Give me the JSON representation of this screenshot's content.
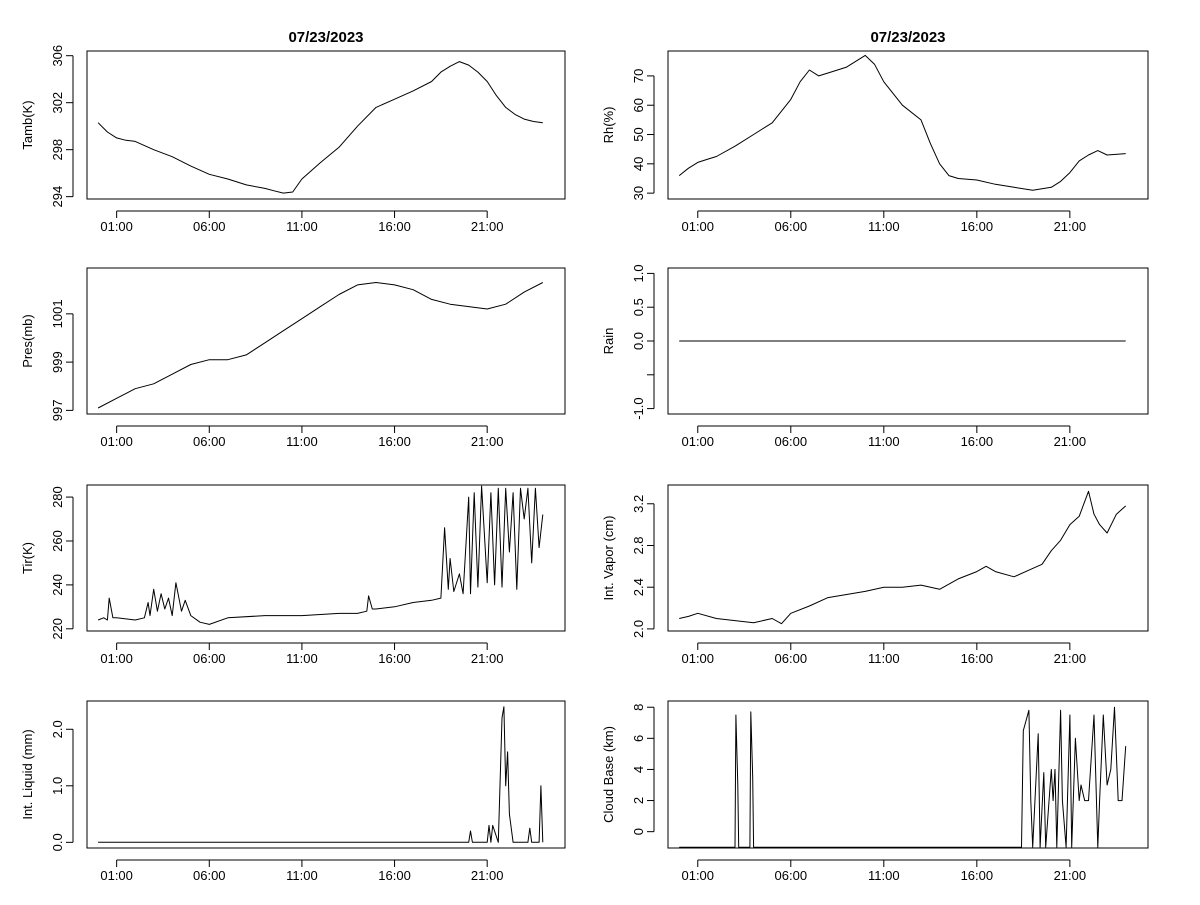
{
  "chart_data": [
    {
      "type": "line",
      "title": "07/23/2023",
      "ylabel": "Tamb(K)",
      "xlabel": "",
      "xlim": [
        -0.6,
        25.2
      ],
      "ylim": [
        293.8,
        306.4
      ],
      "xticks": [
        "01:00",
        "06:00",
        "11:00",
        "16:00",
        "21:00"
      ],
      "xtick_values": [
        1,
        6,
        11,
        16,
        21
      ],
      "yticks": [
        294,
        298,
        302,
        306
      ],
      "ytick_labels": [
        "294",
        "298",
        "302",
        "306"
      ],
      "x": [
        0,
        0.5,
        1,
        1.5,
        2,
        3,
        4,
        5,
        6,
        7,
        8,
        9,
        9.5,
        10,
        10.5,
        11,
        12,
        13,
        14,
        15,
        16,
        17,
        18,
        18.5,
        19,
        19.5,
        20,
        20.5,
        21,
        21.5,
        22,
        22.5,
        23,
        23.5,
        24
      ],
      "y": [
        300.3,
        299.5,
        299.0,
        298.8,
        298.7,
        298.0,
        297.4,
        296.6,
        295.9,
        295.5,
        295.0,
        294.7,
        294.5,
        294.3,
        294.4,
        295.5,
        296.9,
        298.2,
        300.0,
        301.6,
        302.3,
        303.0,
        303.8,
        304.6,
        305.1,
        305.5,
        305.2,
        304.6,
        303.8,
        302.6,
        301.6,
        301.0,
        300.6,
        300.4,
        300.3
      ]
    },
    {
      "type": "line",
      "title": "07/23/2023",
      "ylabel": "Rh(%)",
      "xlabel": "",
      "xlim": [
        -0.6,
        25.2
      ],
      "ylim": [
        28,
        78.5
      ],
      "xticks": [
        "01:00",
        "06:00",
        "11:00",
        "16:00",
        "21:00"
      ],
      "xtick_values": [
        1,
        6,
        11,
        16,
        21
      ],
      "yticks": [
        30,
        40,
        50,
        60,
        70
      ],
      "ytick_labels": [
        "30",
        "40",
        "50",
        "60",
        "70"
      ],
      "x": [
        0,
        0.5,
        1,
        1.5,
        2,
        3,
        4,
        5,
        6,
        6.5,
        7,
        7.5,
        8,
        9,
        10,
        10.5,
        11,
        12,
        13,
        13.5,
        14,
        14.5,
        15,
        16,
        17,
        18,
        19,
        20,
        20.5,
        21,
        21.5,
        22,
        22.5,
        23,
        24
      ],
      "y": [
        36,
        38.5,
        40.5,
        41.5,
        42.5,
        46,
        50,
        54,
        62,
        68,
        72,
        70,
        71,
        73,
        77,
        74,
        68,
        60,
        55,
        47,
        40,
        36,
        35,
        34.5,
        33,
        32,
        31,
        32,
        34,
        37,
        41,
        43,
        44.5,
        43,
        43.5
      ]
    },
    {
      "type": "line",
      "title": "",
      "ylabel": "Pres(mb)",
      "xlabel": "",
      "xlim": [
        -0.6,
        25.2
      ],
      "ylim": [
        996.85,
        1002.9
      ],
      "xticks": [
        "01:00",
        "06:00",
        "11:00",
        "16:00",
        "21:00"
      ],
      "xtick_values": [
        1,
        6,
        11,
        16,
        21
      ],
      "yticks": [
        997,
        999,
        1001
      ],
      "ytick_labels": [
        "997",
        "999",
        "1001"
      ],
      "x": [
        0,
        1,
        2,
        3,
        4,
        5,
        6,
        7,
        8,
        9,
        10,
        11,
        12,
        13,
        14,
        15,
        16,
        17,
        18,
        19,
        20,
        21,
        22,
        23,
        24
      ],
      "y": [
        997.1,
        997.5,
        997.9,
        998.1,
        998.5,
        998.9,
        999.1,
        999.1,
        999.3,
        999.8,
        1000.3,
        1000.8,
        1001.3,
        1001.8,
        1002.2,
        1002.3,
        1002.2,
        1002.0,
        1001.6,
        1001.4,
        1001.3,
        1001.2,
        1001.4,
        1001.9,
        1002.3
      ]
    },
    {
      "type": "line",
      "title": "",
      "ylabel": "Rain",
      "xlabel": "",
      "xlim": [
        -0.6,
        25.2
      ],
      "ylim": [
        -1.08,
        1.08
      ],
      "xticks": [
        "01:00",
        "06:00",
        "11:00",
        "16:00",
        "21:00"
      ],
      "xtick_values": [
        1,
        6,
        11,
        16,
        21
      ],
      "yticks": [
        -1.0,
        -0.5,
        0.0,
        0.5,
        1.0
      ],
      "ytick_labels": [
        "-1.0",
        "",
        "0.0",
        "0.5",
        "1.0"
      ],
      "x": [
        0,
        24
      ],
      "y": [
        0,
        0
      ]
    },
    {
      "type": "line",
      "title": "",
      "ylabel": "Tir(K)",
      "xlabel": "",
      "xlim": [
        -0.6,
        25.2
      ],
      "ylim": [
        219,
        285.5
      ],
      "xticks": [
        "01:00",
        "06:00",
        "11:00",
        "16:00",
        "21:00"
      ],
      "xtick_values": [
        1,
        6,
        11,
        16,
        21
      ],
      "yticks": [
        220,
        240,
        260,
        280
      ],
      "ytick_labels": [
        "220",
        "240",
        "260",
        "280"
      ],
      "x": [
        0,
        0.3,
        0.5,
        0.6,
        0.8,
        1,
        2,
        2.5,
        2.7,
        2.8,
        3,
        3.2,
        3.4,
        3.6,
        3.8,
        4,
        4.2,
        4.5,
        4.7,
        5,
        5.5,
        6,
        7,
        9,
        11,
        13,
        14,
        14.5,
        14.6,
        14.8,
        15,
        16,
        17,
        18,
        18.5,
        18.7,
        18.9,
        19,
        19.2,
        19.5,
        19.7,
        20,
        20.1,
        20.3,
        20.5,
        20.7,
        21,
        21.2,
        21.4,
        21.6,
        21.8,
        22,
        22.2,
        22.4,
        22.6,
        22.8,
        23,
        23.2,
        23.4,
        23.6,
        23.8,
        24
      ],
      "y": [
        224,
        225,
        224,
        234,
        225,
        225,
        224,
        225,
        232,
        226,
        238,
        228,
        236,
        229,
        234,
        226,
        241,
        228,
        233,
        226,
        223,
        222,
        225,
        226,
        226,
        227,
        227,
        228,
        235,
        229,
        229,
        230,
        232,
        233,
        234,
        266,
        238,
        252,
        237,
        245,
        236,
        280,
        236,
        282,
        239,
        285,
        241,
        282,
        240,
        284,
        239,
        284,
        255,
        282,
        238,
        284,
        270,
        284,
        250,
        284,
        257,
        272
      ]
    },
    {
      "type": "line",
      "title": "",
      "ylabel": "Int. Vapor (cm)",
      "xlabel": "",
      "xlim": [
        -0.6,
        25.2
      ],
      "ylim": [
        1.98,
        3.38
      ],
      "xticks": [
        "01:00",
        "06:00",
        "11:00",
        "16:00",
        "21:00"
      ],
      "xtick_values": [
        1,
        6,
        11,
        16,
        21
      ],
      "yticks": [
        2.0,
        2.4,
        2.8,
        3.2
      ],
      "ytick_labels": [
        "2.0",
        "2.4",
        "2.8",
        "3.2"
      ],
      "x": [
        0,
        0.5,
        1,
        2,
        3,
        4,
        5,
        5.5,
        6,
        7,
        8,
        9,
        10,
        11,
        12,
        13,
        14,
        15,
        16,
        16.5,
        17,
        18,
        19,
        19.5,
        20,
        20.5,
        21,
        21.5,
        22,
        22.3,
        22.6,
        23,
        23.5,
        24
      ],
      "y": [
        2.1,
        2.12,
        2.15,
        2.1,
        2.08,
        2.06,
        2.1,
        2.05,
        2.15,
        2.22,
        2.3,
        2.33,
        2.36,
        2.4,
        2.4,
        2.42,
        2.38,
        2.48,
        2.55,
        2.6,
        2.55,
        2.5,
        2.58,
        2.62,
        2.75,
        2.85,
        3.0,
        3.08,
        3.32,
        3.1,
        3.0,
        2.92,
        3.1,
        3.18
      ]
    },
    {
      "type": "line",
      "title": "",
      "ylabel": "Int. Liquid (mm)",
      "xlabel": "",
      "xlim": [
        -0.6,
        25.2
      ],
      "ylim": [
        -0.1,
        2.5
      ],
      "xticks": [
        "01:00",
        "06:00",
        "11:00",
        "16:00",
        "21:00"
      ],
      "xtick_values": [
        1,
        6,
        11,
        16,
        21
      ],
      "yticks": [
        0.0,
        1.0,
        2.0
      ],
      "ytick_labels": [
        "0.0",
        "1.0",
        "2.0"
      ],
      "x": [
        0,
        20,
        20.1,
        20.2,
        21,
        21.1,
        21.2,
        21.3,
        21.6,
        21.8,
        21.9,
        22.0,
        22.1,
        22.2,
        22.4,
        22.6,
        23,
        23.2,
        23.3,
        23.4,
        23.8,
        23.9,
        24
      ],
      "y": [
        0,
        0,
        0.2,
        0,
        0,
        0.3,
        0,
        0.3,
        0,
        2.2,
        2.4,
        1.0,
        1.6,
        0.5,
        0,
        0,
        0,
        0,
        0.25,
        0,
        0,
        1.0,
        0
      ]
    },
    {
      "type": "line",
      "title": "",
      "ylabel": "Cloud Base (km)",
      "xlabel": "",
      "xlim": [
        -0.6,
        25.2
      ],
      "ylim": [
        -1.05,
        8.4
      ],
      "xticks": [
        "01:00",
        "06:00",
        "11:00",
        "16:00",
        "21:00"
      ],
      "xtick_values": [
        1,
        6,
        11,
        16,
        21
      ],
      "yticks": [
        0,
        2,
        4,
        6,
        8
      ],
      "ytick_labels": [
        "0",
        "2",
        "4",
        "6",
        "8"
      ],
      "x": [
        0,
        3,
        3.05,
        3.15,
        3.2,
        3.8,
        3.85,
        3.95,
        4.0,
        18.4,
        18.5,
        18.8,
        18.9,
        19.0,
        19.3,
        19.4,
        19.6,
        19.7,
        20.0,
        20.1,
        20.2,
        20.3,
        20.5,
        20.6,
        20.8,
        21.0,
        21.1,
        21.3,
        21.5,
        21.6,
        21.8,
        22.0,
        22.3,
        22.5,
        22.6,
        22.8,
        23.0,
        23.2,
        23.4,
        23.6,
        23.8,
        24
      ],
      "y": [
        -1,
        -1,
        7.5,
        3,
        -1,
        -1,
        7.7,
        3.5,
        -1,
        -1,
        6.5,
        7.8,
        2,
        -1,
        6.3,
        -1,
        3.8,
        -1,
        4,
        2,
        4,
        -1,
        7.8,
        2,
        -1,
        7.5,
        -1,
        6,
        2,
        3,
        2,
        2,
        7.5,
        -1,
        2,
        7.5,
        3,
        4,
        8,
        2,
        2,
        5.5
      ]
    }
  ]
}
